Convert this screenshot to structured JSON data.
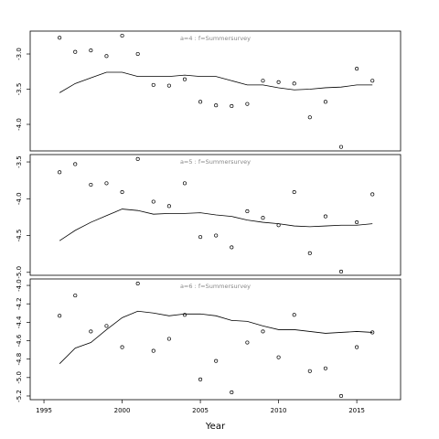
{
  "chart_data": [
    {
      "type": "scatter",
      "title": "a=4  :  f=Summersurvey",
      "x": [
        1996,
        1997,
        1998,
        1999,
        2000,
        2001,
        2002,
        2003,
        2004,
        2005,
        2006,
        2007,
        2008,
        2009,
        2010,
        2011,
        2012,
        2013,
        2014,
        2015,
        2016
      ],
      "values": [
        -2.77,
        -2.97,
        -2.95,
        -3.03,
        -2.74,
        -3.0,
        -3.44,
        -3.45,
        -3.36,
        -3.68,
        -3.73,
        -3.74,
        -3.71,
        -3.38,
        -3.4,
        -3.42,
        -3.9,
        -3.68,
        -4.32,
        -3.21,
        -3.38
      ],
      "line_values": [
        -3.55,
        -3.42,
        -3.34,
        -3.26,
        -3.26,
        -3.32,
        -3.32,
        -3.32,
        -3.3,
        -3.32,
        -3.32,
        -3.38,
        -3.44,
        -3.44,
        -3.48,
        -3.51,
        -3.5,
        -3.48,
        -3.47,
        -3.44,
        -3.44
      ],
      "color": "#000000",
      "xlim": [
        1994.12,
        2017.8
      ],
      "ylim": [
        -4.377,
        -2.675
      ],
      "yticks": [
        {
          "value": -3,
          "label": "-3.0"
        },
        -3.5,
        {
          "value": -4,
          "label": "-4.0"
        }
      ]
    },
    {
      "type": "scatter",
      "title": "a=5  :  f=Summersurvey",
      "x": [
        1996,
        1997,
        1998,
        1999,
        2000,
        2001,
        2002,
        2003,
        2004,
        2005,
        2006,
        2007,
        2008,
        2009,
        2010,
        2011,
        2012,
        2013,
        2014,
        2015,
        2016
      ],
      "values": [
        -3.64,
        -3.53,
        -3.81,
        -3.79,
        -3.91,
        -3.46,
        -4.04,
        -4.1,
        -3.79,
        -4.52,
        -4.5,
        -4.66,
        -4.17,
        -4.26,
        -4.36,
        -3.91,
        -4.74,
        -4.24,
        -4.99,
        -4.32,
        -3.94
      ],
      "line_values": [
        -4.57,
        -4.43,
        -4.32,
        -4.23,
        -4.14,
        -4.16,
        -4.21,
        -4.2,
        -4.2,
        -4.19,
        -4.22,
        -4.24,
        -4.29,
        -4.32,
        -4.34,
        -4.37,
        -4.38,
        -4.37,
        -4.36,
        -4.36,
        -4.34
      ],
      "color": "#000000",
      "xlim": [
        1994.12,
        2017.8
      ],
      "ylim": [
        -5.04,
        -3.4
      ],
      "yticks": [
        -3.5,
        {
          "value": -4,
          "label": "-4.0"
        },
        -4.5,
        {
          "value": -5,
          "label": "-5.0"
        }
      ]
    },
    {
      "type": "scatter",
      "title": "a=6  :  f=Summersurvey",
      "x": [
        1996,
        1997,
        1998,
        1999,
        2000,
        2001,
        2002,
        2003,
        2004,
        2005,
        2006,
        2007,
        2008,
        2009,
        2010,
        2011,
        2012,
        2013,
        2014,
        2015,
        2016
      ],
      "values": [
        -4.33,
        -4.11,
        -4.5,
        -4.44,
        -4.67,
        -3.98,
        -4.71,
        -4.58,
        -4.32,
        -5.02,
        -4.82,
        -5.16,
        -4.62,
        -4.5,
        -4.78,
        -4.32,
        -4.93,
        -4.9,
        -5.2,
        -4.67,
        -4.51
      ],
      "line_values": [
        -4.85,
        -4.68,
        -4.62,
        -4.48,
        -4.35,
        -4.28,
        -4.3,
        -4.33,
        -4.31,
        -4.31,
        -4.33,
        -4.38,
        -4.39,
        -4.44,
        -4.48,
        -4.48,
        -4.5,
        -4.52,
        -4.51,
        -4.5,
        -4.51
      ],
      "color": "#000000",
      "xlim": [
        1994.12,
        2017.8
      ],
      "ylim": [
        -5.24,
        -3.93
      ],
      "yticks": [
        {
          "value": -4,
          "label": "-4.0"
        },
        -4.2,
        -4.4,
        -4.6,
        -4.8,
        {
          "value": -5,
          "label": "-5.0"
        },
        -5.2
      ],
      "xticks": [
        1995,
        2000,
        2005,
        2010,
        2015
      ],
      "xlabel": "Year"
    }
  ]
}
